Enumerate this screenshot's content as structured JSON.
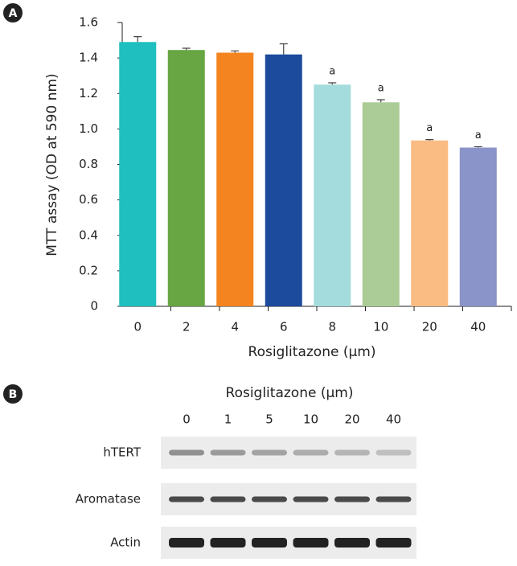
{
  "chart_data": {
    "type": "bar",
    "panel_label": "A",
    "ylabel": "MTT assay (OD at 590 nm)",
    "xlabel": "Rosiglitazone (μm)",
    "categories": [
      "0",
      "2",
      "4",
      "6",
      "8",
      "10",
      "20",
      "40"
    ],
    "values": [
      1.49,
      1.445,
      1.43,
      1.42,
      1.25,
      1.15,
      0.935,
      0.895
    ],
    "errors": [
      0.03,
      0.01,
      0.01,
      0.06,
      0.01,
      0.015,
      0.005,
      0.005
    ],
    "colors": [
      "#1fbfbf",
      "#67a642",
      "#f3841f",
      "#1c4a9c",
      "#a4dcdd",
      "#abcc96",
      "#fbbc84",
      "#8a94c8"
    ],
    "annotations": [
      null,
      null,
      null,
      null,
      "a",
      "a",
      "a",
      "a"
    ],
    "ylim": [
      0,
      1.6
    ],
    "yticks": [
      0,
      0.2,
      0.4,
      0.6,
      0.8,
      {
        "value": 1,
        "label": "1.0"
      },
      1.2,
      1.4,
      1.6
    ]
  },
  "blot": {
    "panel_label": "B",
    "title": "Rosiglitazone (μm)",
    "lanes": [
      "0",
      "1",
      "5",
      "10",
      "20",
      "40"
    ],
    "rows": [
      "hTERT",
      "Aromatase",
      "Actin"
    ]
  }
}
